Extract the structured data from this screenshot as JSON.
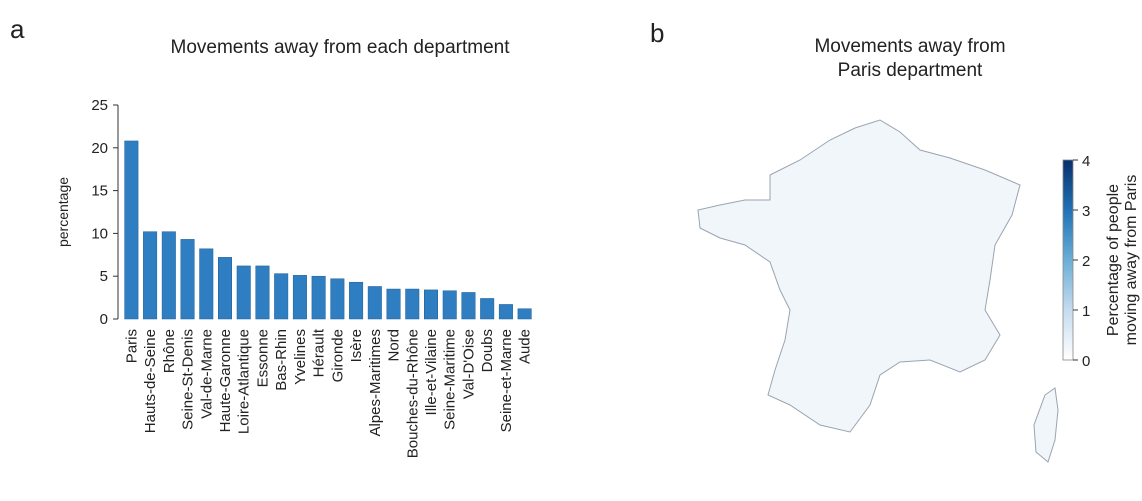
{
  "chart_data": [
    {
      "type": "bar",
      "panel_label": "a",
      "title": "Movements away from each department",
      "y_label": "percentage",
      "categories": [
        "Paris",
        "Hauts-de-Seine",
        "Rhône",
        "Seine-St-Denis",
        "Val-de-Marne",
        "Haute-Garonne",
        "Loire-Atlantique",
        "Essonne",
        "Bas-Rhin",
        "Yvelines",
        "Hérault",
        "Gironde",
        "Isère",
        "Alpes-Maritimes",
        "Nord",
        "Bouches-du-Rhône",
        "Ille-et-Vilaine",
        "Seine-Maritime",
        "Val-D'Oise",
        "Doubs",
        "Seine-et-Marne",
        "Aude"
      ],
      "values": [
        20.8,
        10.2,
        10.2,
        9.3,
        8.2,
        7.2,
        6.2,
        6.2,
        5.3,
        5.1,
        5.0,
        4.7,
        4.3,
        3.8,
        3.5,
        3.5,
        3.4,
        3.3,
        3.1,
        2.4,
        1.7,
        1.2
      ],
      "color": "#2f7ec1",
      "ylim": [
        0,
        25
      ],
      "yticks": [
        0,
        5,
        10,
        15,
        20,
        25
      ]
    },
    {
      "type": "map",
      "panel_label": "b",
      "title_lines": [
        "Movements away from",
        "Paris department"
      ],
      "colorbar_label_lines": [
        "Percentage of people",
        "moving away from Paris"
      ],
      "colorbar_lim": [
        0,
        4
      ],
      "colorbar_ticks": [
        0,
        1,
        2,
        3,
        4
      ]
    }
  ]
}
